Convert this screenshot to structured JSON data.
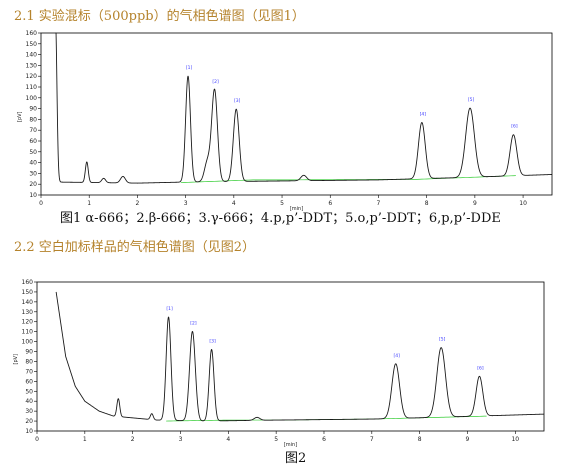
{
  "section1": {
    "title": "2.1 实验混标（500ppb）的气相色谱图（见图1）"
  },
  "caption1": "图1 α-666；2.β-666；3.γ-666；4.p,p’-DDT；5.o,p’-DDT；6,p,p’-DDE",
  "section2": {
    "title": "2.2 空白加标样品的气相色谱图（见图2）"
  },
  "caption2": "图2",
  "colors": {
    "trace": "#1a1a1a",
    "baseline": "#33cc33",
    "peak_label": "#3a3aff",
    "frame": "#000000",
    "title": "#b5832c"
  },
  "chart_data": [
    {
      "type": "line",
      "title": "",
      "xlabel": "[min]",
      "ylabel": "[pV]",
      "xlim": [
        0,
        10.6
      ],
      "ylim": [
        10,
        160
      ],
      "x_ticks": [
        0,
        1,
        2,
        3,
        4,
        5,
        6,
        7,
        8,
        9,
        10
      ],
      "y_ticks": [
        10,
        20,
        30,
        40,
        50,
        60,
        70,
        80,
        90,
        100,
        110,
        120,
        130,
        140,
        150,
        160
      ],
      "baseline_trend": [
        [
          0.3,
          22
        ],
        [
          2.0,
          21
        ],
        [
          3.0,
          22
        ],
        [
          5.0,
          23
        ],
        [
          7.0,
          24
        ],
        [
          8.6,
          26
        ],
        [
          10.6,
          29
        ]
      ],
      "fill_baseline": [
        [
          2.9,
          21.5
        ],
        [
          4.4,
          24
        ],
        [
          5.0,
          24
        ],
        [
          7.8,
          24.5
        ],
        [
          9.9,
          28
        ]
      ],
      "peaks": [
        {
          "x": 0.3,
          "height": 150,
          "width": 0.03,
          "label": ""
        },
        {
          "x": 0.95,
          "height": 19,
          "width": 0.03,
          "label": ""
        },
        {
          "x": 1.3,
          "height": 4,
          "width": 0.04,
          "label": ""
        },
        {
          "x": 1.7,
          "height": 6,
          "width": 0.05,
          "label": ""
        },
        {
          "x": 3.05,
          "height": 98,
          "width": 0.05,
          "label": "[1]"
        },
        {
          "x": 3.45,
          "height": 18,
          "width": 0.06,
          "label": ""
        },
        {
          "x": 3.6,
          "height": 85,
          "width": 0.06,
          "label": "[2]"
        },
        {
          "x": 4.05,
          "height": 67,
          "width": 0.06,
          "label": "[3]"
        },
        {
          "x": 5.45,
          "height": 5,
          "width": 0.06,
          "label": ""
        },
        {
          "x": 7.9,
          "height": 52,
          "width": 0.07,
          "label": "[4]"
        },
        {
          "x": 8.9,
          "height": 64,
          "width": 0.09,
          "label": "[5]"
        },
        {
          "x": 9.8,
          "height": 38,
          "width": 0.07,
          "label": "[6]"
        }
      ]
    },
    {
      "type": "line",
      "title": "",
      "xlabel": "[min]",
      "ylabel": "[pV]",
      "xlim": [
        0,
        10.6
      ],
      "ylim": [
        10,
        160
      ],
      "x_ticks": [
        0,
        1,
        2,
        3,
        4,
        5,
        6,
        7,
        8,
        9,
        10
      ],
      "y_ticks": [
        10,
        20,
        30,
        40,
        50,
        60,
        70,
        80,
        90,
        100,
        110,
        120,
        130,
        140,
        150,
        160
      ],
      "baseline_trend": [
        [
          0.4,
          150
        ],
        [
          0.6,
          85
        ],
        [
          0.8,
          55
        ],
        [
          1.0,
          40
        ],
        [
          1.3,
          30
        ],
        [
          1.6,
          25
        ],
        [
          2.5,
          21
        ],
        [
          3.5,
          20
        ],
        [
          5.0,
          21
        ],
        [
          7.0,
          22
        ],
        [
          8.5,
          24
        ],
        [
          10.6,
          27
        ]
      ],
      "fill_baseline": [
        [
          2.7,
          20
        ],
        [
          4.0,
          21
        ],
        [
          5.0,
          21
        ],
        [
          7.0,
          22
        ],
        [
          9.4,
          25
        ]
      ],
      "peaks": [
        {
          "x": 1.7,
          "height": 18,
          "width": 0.03,
          "label": ""
        },
        {
          "x": 2.4,
          "height": 6,
          "width": 0.03,
          "label": ""
        },
        {
          "x": 2.75,
          "height": 104,
          "width": 0.05,
          "label": "[1]"
        },
        {
          "x": 3.25,
          "height": 90,
          "width": 0.06,
          "label": "[2]"
        },
        {
          "x": 3.65,
          "height": 72,
          "width": 0.05,
          "label": "[3]"
        },
        {
          "x": 4.6,
          "height": 3,
          "width": 0.06,
          "label": ""
        },
        {
          "x": 7.5,
          "height": 55,
          "width": 0.08,
          "label": "[4]"
        },
        {
          "x": 8.45,
          "height": 70,
          "width": 0.09,
          "label": "[5]"
        },
        {
          "x": 9.25,
          "height": 40,
          "width": 0.07,
          "label": "[6]"
        }
      ]
    }
  ]
}
